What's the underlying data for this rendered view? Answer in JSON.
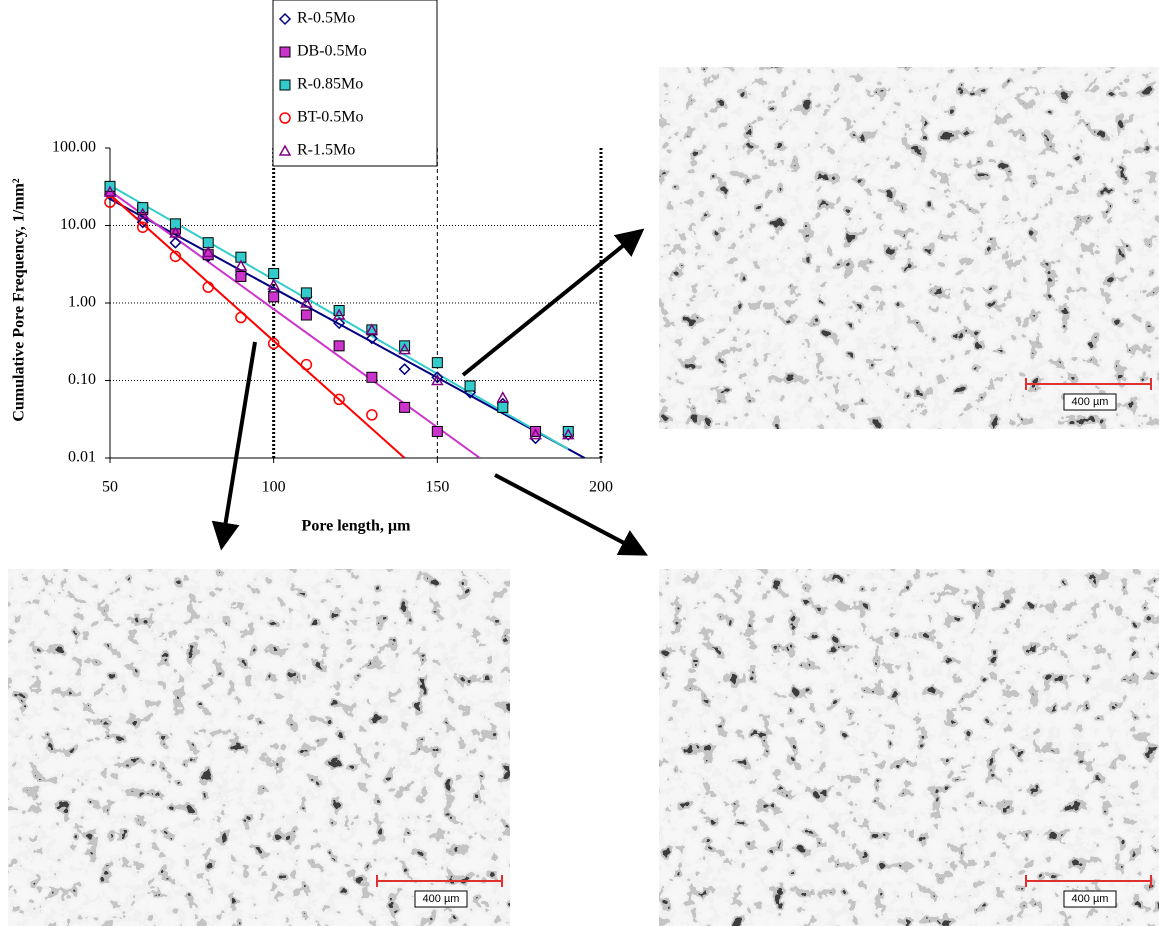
{
  "chart_data": {
    "type": "scatter",
    "xlabel": "Pore length, µm",
    "ylabel": "Cumulative Pore Frequency, 1/mm²",
    "xlim": [
      50,
      200
    ],
    "xticks": [
      50,
      100,
      150,
      200
    ],
    "ylim": [
      0.01,
      100
    ],
    "yscale": "log",
    "yticks": [
      {
        "value": 100,
        "label": "100.00"
      },
      {
        "value": 10,
        "label": "10.00"
      },
      {
        "value": 1,
        "label": "1.00"
      },
      {
        "value": 0.1,
        "label": "0.10"
      },
      {
        "value": 0.01,
        "label": "0.01"
      }
    ],
    "grid": true,
    "vlines": [
      100,
      150,
      200
    ],
    "legend": "top",
    "series": [
      {
        "name": "R-0.5Mo",
        "color": "#000080",
        "marker": "diamond",
        "x": [
          50,
          60,
          70,
          80,
          90,
          100,
          110,
          120,
          130,
          140,
          150,
          160,
          170,
          180,
          190
        ],
        "values": [
          25,
          11,
          6,
          4,
          2.3,
          1.4,
          1.2,
          0.55,
          0.35,
          0.14,
          0.11,
          0.07,
          0.05,
          0.018,
          0.02
        ],
        "fit": {
          "x": [
            50,
            195
          ],
          "values": [
            22,
            0.01
          ]
        }
      },
      {
        "name": "DB-0.5Mo",
        "color": "#cc33cc",
        "marker": "square",
        "x": [
          50,
          60,
          70,
          80,
          90,
          100,
          110,
          120,
          130,
          140,
          150,
          180
        ],
        "values": [
          28,
          16,
          9,
          4.2,
          2.2,
          1.2,
          0.7,
          0.28,
          0.11,
          0.045,
          0.022,
          0.022
        ],
        "fit": {
          "x": [
            50,
            163
          ],
          "values": [
            28,
            0.01
          ]
        }
      },
      {
        "name": "R-0.85Mo",
        "color": "#33cccc",
        "marker": "square",
        "x": [
          50,
          60,
          70,
          80,
          90,
          100,
          110,
          120,
          130,
          140,
          150,
          160,
          170,
          190
        ],
        "values": [
          32,
          17,
          10.5,
          6,
          3.9,
          2.4,
          1.35,
          0.8,
          0.45,
          0.28,
          0.17,
          0.085,
          0.045,
          0.022
        ],
        "fit": {
          "x": [
            50,
            190
          ],
          "values": [
            33,
            0.013
          ]
        }
      },
      {
        "name": "BT-0.5Mo",
        "color": "#ff0000",
        "marker": "circle",
        "x": [
          50,
          60,
          70,
          80,
          90,
          100,
          110,
          120,
          130
        ],
        "values": [
          20,
          9.5,
          4,
          1.6,
          0.65,
          0.3,
          0.16,
          0.057,
          0.036
        ],
        "fit": {
          "x": [
            50,
            140
          ],
          "values": [
            25,
            0.01
          ]
        }
      },
      {
        "name": "R-1.5Mo",
        "color": "#800080",
        "marker": "triangle",
        "x": [
          50,
          60,
          70,
          80,
          90,
          100,
          110,
          120,
          130,
          140,
          150,
          170,
          180,
          190
        ],
        "values": [
          27,
          14,
          8,
          4.5,
          3,
          1.7,
          1.0,
          0.7,
          0.45,
          0.25,
          0.1,
          0.06,
          0.02,
          0.02
        ]
      }
    ]
  },
  "micrographs": [
    {
      "scale_label": "400 µm"
    },
    {
      "scale_label": "400 µm"
    },
    {
      "scale_label": "400 µm"
    }
  ]
}
